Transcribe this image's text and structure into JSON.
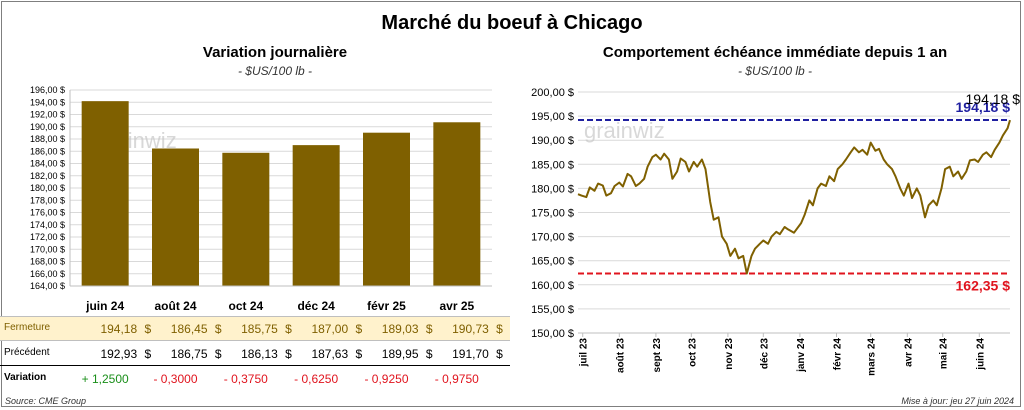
{
  "title": "Marché du boeuf à Chicago",
  "footer": {
    "source": "Source: CME Group",
    "updated": "Mise à jour: jeu 27 juin 2024"
  },
  "watermark": "grainwiz",
  "colors": {
    "bar": "#7f6000",
    "line": "#7f6000",
    "close_band": "#fff2cc",
    "last_line": "#1f1fa0",
    "min_line": "#e0141e",
    "positive": "#1a8f1a",
    "negative": "#e0141e"
  },
  "table": {
    "close_label": "Fermeture",
    "prev_label": "Précédent",
    "change_label": "Variation",
    "currency": "$",
    "close": [
      "194,18",
      "186,45",
      "185,75",
      "187,00",
      "189,03",
      "190,73"
    ],
    "prev": [
      "192,93",
      "186,75",
      "186,13",
      "187,63",
      "189,95",
      "191,70"
    ],
    "change": [
      "+ 1,2500",
      "- 0,3000",
      "- 0,3750",
      "- 0,6250",
      "- 0,9250",
      "- 0,9750"
    ],
    "change_sign": [
      1,
      -1,
      -1,
      -1,
      -1,
      -1
    ]
  },
  "chart_data": [
    {
      "type": "bar",
      "title": "Variation  journalière",
      "subtitle": "- $US/100 lb -",
      "categories": [
        "juin 24",
        "août 24",
        "oct 24",
        "déc 24",
        "févr 25",
        "avr 25"
      ],
      "values": [
        194.18,
        186.45,
        185.75,
        187.0,
        189.03,
        190.73
      ],
      "ylim": [
        164,
        196
      ],
      "yticks": [
        "164,00 $",
        "166,00 $",
        "168,00 $",
        "170,00 $",
        "172,00 $",
        "174,00 $",
        "176,00 $",
        "178,00 $",
        "180,00 $",
        "182,00 $",
        "184,00 $",
        "186,00 $",
        "188,00 $",
        "190,00 $",
        "192,00 $",
        "194,00 $",
        "196,00 $"
      ],
      "grid": true
    },
    {
      "type": "line",
      "title": "Comportement  échéance immédiate depuis 1 an",
      "subtitle": "- $US/100 lb -",
      "ylim": [
        150,
        200
      ],
      "yticks": [
        "150,00 $",
        "155,00 $",
        "160,00 $",
        "165,00 $",
        "170,00 $",
        "175,00 $",
        "180,00 $",
        "185,00 $",
        "190,00 $",
        "195,00 $",
        "200,00 $"
      ],
      "xlim": [
        "2023-06-27",
        "2024-06-27"
      ],
      "xticks": [
        "juil 23",
        "août 23",
        "sept 23",
        "oct 23",
        "nov 23",
        "déc 23",
        "janv 24",
        "févr 24",
        "mars 24",
        "avr 24",
        "mai 24",
        "juin 24"
      ],
      "xtick_dates": [
        "2023-07-01",
        "2023-08-01",
        "2023-09-01",
        "2023-10-01",
        "2023-11-01",
        "2023-12-01",
        "2024-01-01",
        "2024-02-01",
        "2024-03-01",
        "2024-04-01",
        "2024-05-01",
        "2024-06-01"
      ],
      "points": [
        [
          "2023-06-27",
          178.8
        ],
        [
          "2023-06-30",
          178.5
        ],
        [
          "2023-07-04",
          178.2
        ],
        [
          "2023-07-07",
          180.2
        ],
        [
          "2023-07-11",
          179.5
        ],
        [
          "2023-07-14",
          181.0
        ],
        [
          "2023-07-18",
          180.6
        ],
        [
          "2023-07-21",
          178.5
        ],
        [
          "2023-07-25",
          179.0
        ],
        [
          "2023-07-28",
          180.5
        ],
        [
          "2023-08-01",
          181.2
        ],
        [
          "2023-08-04",
          180.4
        ],
        [
          "2023-08-08",
          183.0
        ],
        [
          "2023-08-11",
          182.5
        ],
        [
          "2023-08-15",
          180.5
        ],
        [
          "2023-08-18",
          181.0
        ],
        [
          "2023-08-22",
          182.0
        ],
        [
          "2023-08-25",
          184.5
        ],
        [
          "2023-08-29",
          186.5
        ],
        [
          "2023-09-01",
          187.0
        ],
        [
          "2023-09-05",
          186.0
        ],
        [
          "2023-09-08",
          187.2
        ],
        [
          "2023-09-12",
          186.0
        ],
        [
          "2023-09-15",
          182.0
        ],
        [
          "2023-09-19",
          183.5
        ],
        [
          "2023-09-22",
          186.2
        ],
        [
          "2023-09-26",
          185.5
        ],
        [
          "2023-09-29",
          183.5
        ],
        [
          "2023-10-03",
          185.5
        ],
        [
          "2023-10-06",
          184.5
        ],
        [
          "2023-10-10",
          186.0
        ],
        [
          "2023-10-13",
          184.0
        ],
        [
          "2023-10-17",
          177.2
        ],
        [
          "2023-10-20",
          173.5
        ],
        [
          "2023-10-24",
          174.0
        ],
        [
          "2023-10-27",
          170.0
        ],
        [
          "2023-10-31",
          168.5
        ],
        [
          "2023-11-03",
          166.0
        ],
        [
          "2023-11-07",
          167.5
        ],
        [
          "2023-11-10",
          165.5
        ],
        [
          "2023-11-14",
          166.0
        ],
        [
          "2023-11-17",
          162.35
        ],
        [
          "2023-11-21",
          166.0
        ],
        [
          "2023-11-24",
          167.5
        ],
        [
          "2023-11-28",
          168.5
        ],
        [
          "2023-12-01",
          169.2
        ],
        [
          "2023-12-05",
          168.5
        ],
        [
          "2023-12-08",
          170.0
        ],
        [
          "2023-12-12",
          171.0
        ],
        [
          "2023-12-15",
          170.5
        ],
        [
          "2023-12-19",
          172.0
        ],
        [
          "2023-12-22",
          171.5
        ],
        [
          "2023-12-27",
          170.8
        ],
        [
          "2024-01-02",
          172.8
        ],
        [
          "2024-01-05",
          174.5
        ],
        [
          "2024-01-09",
          177.5
        ],
        [
          "2024-01-12",
          176.5
        ],
        [
          "2024-01-16",
          180.0
        ],
        [
          "2024-01-19",
          181.0
        ],
        [
          "2024-01-23",
          180.5
        ],
        [
          "2024-01-26",
          182.5
        ],
        [
          "2024-01-30",
          181.5
        ],
        [
          "2024-02-02",
          184.0
        ],
        [
          "2024-02-06",
          185.0
        ],
        [
          "2024-02-09",
          186.0
        ],
        [
          "2024-02-13",
          187.5
        ],
        [
          "2024-02-16",
          188.5
        ],
        [
          "2024-02-20",
          187.5
        ],
        [
          "2024-02-23",
          188.0
        ],
        [
          "2024-02-27",
          187.0
        ],
        [
          "2024-03-01",
          189.5
        ],
        [
          "2024-03-05",
          187.8
        ],
        [
          "2024-03-08",
          188.2
        ],
        [
          "2024-03-12",
          186.0
        ],
        [
          "2024-03-15",
          185.0
        ],
        [
          "2024-03-19",
          184.0
        ],
        [
          "2024-03-22",
          182.5
        ],
        [
          "2024-03-26",
          180.0
        ],
        [
          "2024-03-29",
          178.5
        ],
        [
          "2024-04-02",
          181.0
        ],
        [
          "2024-04-05",
          178.0
        ],
        [
          "2024-04-09",
          180.0
        ],
        [
          "2024-04-12",
          178.5
        ],
        [
          "2024-04-16",
          174.0
        ],
        [
          "2024-04-19",
          176.5
        ],
        [
          "2024-04-23",
          177.5
        ],
        [
          "2024-04-26",
          176.5
        ],
        [
          "2024-04-30",
          180.0
        ],
        [
          "2024-05-03",
          184.0
        ],
        [
          "2024-05-07",
          184.5
        ],
        [
          "2024-05-10",
          182.5
        ],
        [
          "2024-05-14",
          183.5
        ],
        [
          "2024-05-17",
          182.0
        ],
        [
          "2024-05-21",
          183.5
        ],
        [
          "2024-05-24",
          185.8
        ],
        [
          "2024-05-28",
          186.0
        ],
        [
          "2024-05-31",
          185.5
        ],
        [
          "2024-06-04",
          187.0
        ],
        [
          "2024-06-07",
          187.5
        ],
        [
          "2024-06-11",
          186.5
        ],
        [
          "2024-06-14",
          188.0
        ],
        [
          "2024-06-18",
          189.5
        ],
        [
          "2024-06-21",
          191.0
        ],
        [
          "2024-06-25",
          192.5
        ],
        [
          "2024-06-27",
          194.18
        ]
      ],
      "reference_lines": [
        {
          "value": 194.18,
          "label": "194,18 $",
          "color": "#1f1fa0",
          "style": "dashed"
        },
        {
          "value": 162.35,
          "label": "162,35 $",
          "color": "#e0141e",
          "style": "dashed"
        }
      ],
      "last_value_label": "194,18 $",
      "grid": true
    }
  ]
}
